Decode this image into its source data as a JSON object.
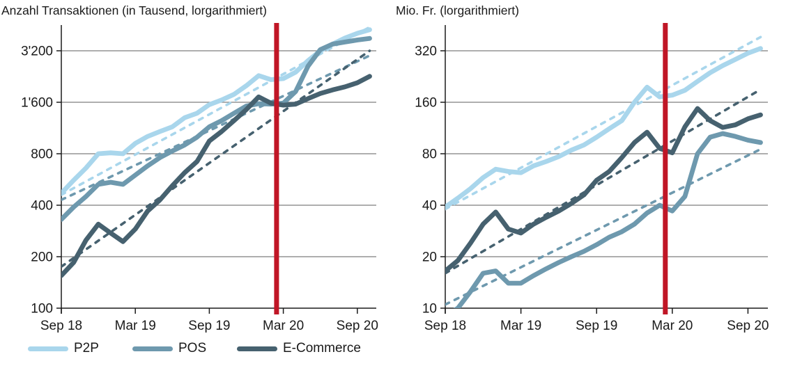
{
  "colors": {
    "p2p": "#a9d6ec",
    "pos": "#6e99ae",
    "ecommerce": "#46616f",
    "event": "#c01626",
    "grid": "#7d7d7d",
    "axis": "#1a1a1a",
    "text": "#1a1a1a"
  },
  "legend": {
    "items": [
      {
        "label": "P2P",
        "color_key": "p2p"
      },
      {
        "label": "POS",
        "color_key": "pos"
      },
      {
        "label": "E-Commerce",
        "color_key": "ecommerce"
      }
    ]
  },
  "chart_data": [
    {
      "type": "line",
      "title": "Anzahl Transaktionen (in Tausend, lorgarithmiert)",
      "y_scale": "log2",
      "x_range_months": [
        "Sep 2018",
        "Okt 2020"
      ],
      "x_tick_labels": [
        "Sep 18",
        "Mar 19",
        "Sep 19",
        "Mar 20",
        "Sep 20"
      ],
      "x_tick_months": [
        0,
        6,
        12,
        18,
        24
      ],
      "y_ticks": [
        {
          "value": 3200,
          "label": "3'200"
        },
        {
          "value": 1600,
          "label": "1'600"
        },
        {
          "value": 800,
          "label": "800"
        },
        {
          "value": 400,
          "label": "400"
        },
        {
          "value": 200,
          "label": "200"
        },
        {
          "value": 100,
          "label": "100"
        }
      ],
      "series": [
        {
          "name": "P2P",
          "color_key": "p2p",
          "values": [
            470,
            560,
            660,
            800,
            810,
            800,
            920,
            1010,
            1080,
            1150,
            1300,
            1380,
            1550,
            1650,
            1780,
            2000,
            2290,
            2170,
            2200,
            2400,
            2800,
            3200,
            3500,
            3800,
            4050,
            4250
          ]
        },
        {
          "name": "POS",
          "color_key": "pos",
          "values": [
            330,
            390,
            450,
            530,
            545,
            530,
            600,
            680,
            760,
            830,
            900,
            1000,
            1150,
            1250,
            1380,
            1520,
            1570,
            1560,
            1580,
            1850,
            2600,
            3250,
            3500,
            3600,
            3700,
            3780
          ]
        },
        {
          "name": "E-Commerce",
          "color_key": "ecommerce",
          "values": [
            155,
            185,
            250,
            310,
            275,
            245,
            290,
            370,
            430,
            520,
            620,
            720,
            950,
            1080,
            1250,
            1450,
            1720,
            1580,
            1540,
            1560,
            1680,
            1800,
            1890,
            1970,
            2080,
            2270
          ]
        }
      ],
      "trend_lines": [
        {
          "series": "P2P",
          "start": 460,
          "end": 4400
        },
        {
          "series": "POS",
          "start": 430,
          "end": 3000
        },
        {
          "series": "E-Commerce",
          "start": 175,
          "end": 3200
        }
      ],
      "event_line": {
        "month": 17.45,
        "color_key": "event"
      }
    },
    {
      "type": "line",
      "title": "Mio. Fr. (lorgarithmiert)",
      "y_scale": "log2",
      "x_range_months": [
        "Sep 2018",
        "Okt 2020"
      ],
      "x_tick_labels": [
        "Sep 18",
        "Mar 19",
        "Sep 19",
        "Mar 20",
        "Sep 20"
      ],
      "x_tick_months": [
        0,
        6,
        12,
        18,
        24
      ],
      "y_ticks": [
        {
          "value": 320,
          "label": "320"
        },
        {
          "value": 160,
          "label": "160"
        },
        {
          "value": 80,
          "label": "80"
        },
        {
          "value": 40,
          "label": "40"
        },
        {
          "value": 20,
          "label": "20"
        },
        {
          "value": 10,
          "label": "10"
        }
      ],
      "series": [
        {
          "name": "P2P",
          "color_key": "p2p",
          "values": [
            39,
            44,
            50,
            58,
            65,
            63,
            62,
            68,
            72,
            77,
            84,
            90,
            100,
            112,
            125,
            160,
            196,
            172,
            176,
            188,
            212,
            238,
            262,
            285,
            310,
            330
          ]
        },
        {
          "name": "POS",
          "color_key": "pos",
          "values": [
            9,
            10,
            12.5,
            16,
            16.5,
            14,
            14,
            15.5,
            17,
            18.5,
            20,
            21.5,
            23.5,
            26,
            28,
            31,
            36,
            40,
            37,
            45,
            80,
            100,
            105,
            101,
            96,
            93
          ]
        },
        {
          "name": "E-Commerce",
          "color_key": "ecommerce",
          "values": [
            16.5,
            19,
            24,
            31,
            36.5,
            29,
            27.5,
            31,
            34,
            37,
            41,
            46,
            56,
            63,
            76,
            93,
            107,
            86,
            81,
            115,
            147,
            125,
            114,
            118,
            128,
            135
          ]
        }
      ],
      "trend_lines": [
        {
          "series": "P2P",
          "start": 38,
          "end": 385
        },
        {
          "series": "POS",
          "start": 10.5,
          "end": 85
        },
        {
          "series": "E-Commerce",
          "start": 16,
          "end": 190
        }
      ],
      "event_line": {
        "month": 17.45,
        "color_key": "event"
      }
    }
  ]
}
